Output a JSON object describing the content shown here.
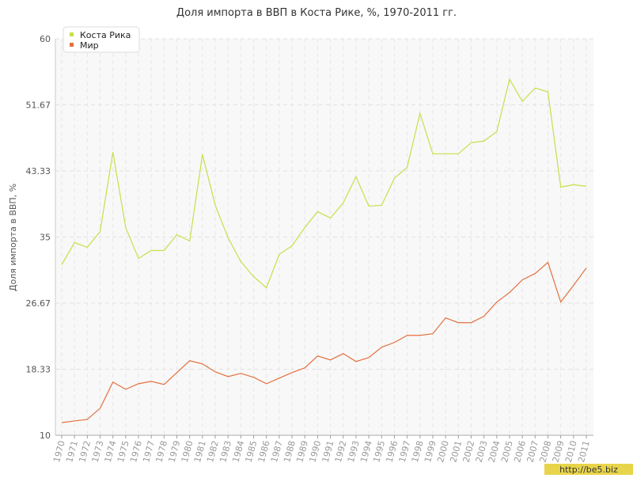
{
  "chart_data": {
    "type": "line",
    "title": "Доля импорта в ВВП в Коста Рике, %, 1970-2011 гг.",
    "y_label": "Доля импорта в ВВП, %",
    "categories": [
      "1970",
      "1971",
      "1972",
      "1973",
      "1974",
      "1975",
      "1976",
      "1977",
      "1978",
      "1979",
      "1980",
      "1981",
      "1982",
      "1983",
      "1984",
      "1985",
      "1986",
      "1987",
      "1988",
      "1989",
      "1990",
      "1991",
      "1992",
      "1993",
      "1994",
      "1995",
      "1996",
      "1997",
      "1998",
      "1999",
      "2000",
      "2001",
      "2002",
      "2003",
      "2004",
      "2005",
      "2006",
      "2007",
      "2008",
      "2009",
      "2010",
      "2011"
    ],
    "series": [
      {
        "name": "Коста Рика",
        "color": "#c5e04a",
        "values": [
          31.5,
          34.3,
          33.7,
          35.7,
          45.7,
          36.2,
          32.3,
          33.3,
          33.3,
          35.3,
          34.5,
          45.4,
          39.0,
          34.9,
          31.9,
          30.0,
          28.6,
          32.8,
          33.9,
          36.2,
          38.2,
          37.4,
          39.3,
          42.6,
          38.9,
          39.0,
          42.4,
          43.8,
          50.6,
          45.5,
          45.5,
          45.5,
          46.9,
          47.1,
          48.3,
          54.9,
          52.1,
          53.8,
          53.3,
          41.3,
          41.6,
          41.4
        ]
      },
      {
        "name": "Мир",
        "color": "#e2703e",
        "values": [
          11.6,
          11.8,
          12.0,
          13.4,
          16.7,
          15.8,
          16.5,
          16.8,
          16.4,
          17.9,
          19.4,
          19.0,
          18.0,
          17.4,
          17.8,
          17.3,
          16.5,
          17.2,
          17.9,
          18.5,
          20.0,
          19.5,
          20.3,
          19.3,
          19.8,
          21.1,
          21.7,
          22.6,
          22.6,
          22.8,
          24.8,
          24.2,
          24.2,
          25.0,
          26.8,
          28.0,
          29.6,
          30.4,
          31.8,
          26.8,
          28.9,
          31.1
        ]
      }
    ],
    "ylim": [
      10,
      60
    ],
    "yticks": [
      10,
      18.33,
      26.67,
      35,
      43.33,
      51.67,
      60
    ],
    "grid": true,
    "legend": "top-left",
    "watermark": "http://be5.biz"
  }
}
